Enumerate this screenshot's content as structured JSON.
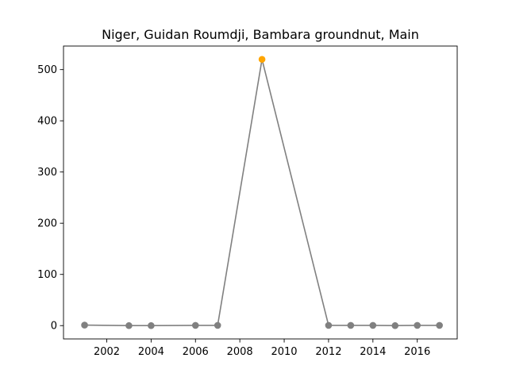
{
  "chart_data": {
    "type": "line",
    "title": "Niger, Guidan Roumdji, Bambara groundnut, Main",
    "xlabel": "",
    "ylabel": "",
    "x": [
      2001,
      2003,
      2004,
      2006,
      2007,
      2009,
      2012,
      2013,
      2014,
      2015,
      2016,
      2017
    ],
    "series": [
      {
        "values": [
          1,
          0,
          0,
          0.5,
          0.5,
          520,
          0.5,
          0.5,
          0.5,
          0,
          0.5,
          0.5
        ],
        "color": "#808080"
      }
    ],
    "highlight": {
      "x": 2009,
      "value": 520,
      "color": "#ffa500"
    },
    "xlim": [
      2000.05,
      2017.8
    ],
    "ylim": [
      -26,
      546
    ],
    "xticks": [
      2002,
      2004,
      2006,
      2008,
      2010,
      2012,
      2014,
      2016
    ],
    "yticks": [
      0,
      100,
      200,
      300,
      400,
      500
    ],
    "grid": false,
    "legend": "none"
  }
}
